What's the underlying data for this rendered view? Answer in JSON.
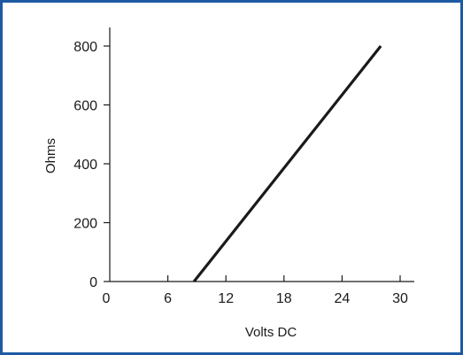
{
  "chart_data": {
    "type": "line",
    "title": "",
    "xlabel": "Volts DC",
    "ylabel": "Ohms",
    "xlim": [
      0,
      32
    ],
    "ylim": [
      0,
      860
    ],
    "xticks": [
      0,
      6,
      12,
      18,
      24,
      30
    ],
    "yticks": [
      0,
      200,
      400,
      600,
      800
    ],
    "grid": false,
    "series": [
      {
        "x": [
          8.7,
          28
        ],
        "y": [
          0,
          800
        ]
      }
    ]
  },
  "colors": {
    "border": "#1d5aa3",
    "line": "#1a1a1a"
  }
}
